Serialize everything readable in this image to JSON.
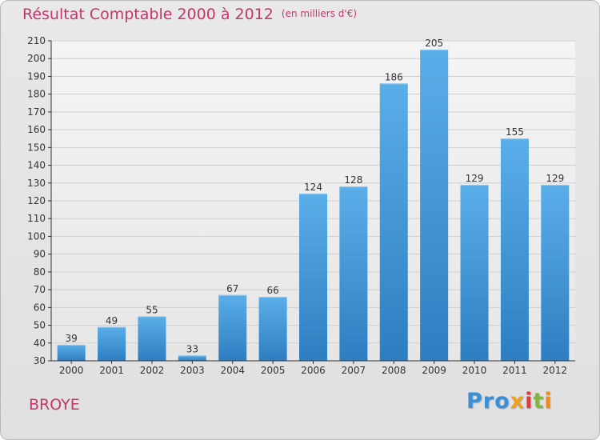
{
  "title": {
    "main": "Résultat Comptable 2000 à 2012",
    "unit": "(en milliers d'€)"
  },
  "commune": "BROYE",
  "logo": {
    "p1": "Pro",
    "p2": "x",
    "p3": "i",
    "p4": "t",
    "p5": "i"
  },
  "colors": {
    "title": "#c4366b",
    "bar_top": "#5aaee8",
    "bar_bottom": "#2d7ec1",
    "grid": "#cfcfcf",
    "axis": "#333333"
  },
  "chart_data": {
    "type": "bar",
    "title": "Résultat Comptable 2000 à 2012",
    "xlabel": "",
    "ylabel": "(en milliers d'€)",
    "categories": [
      "2000",
      "2001",
      "2002",
      "2003",
      "2004",
      "2005",
      "2006",
      "2007",
      "2008",
      "2009",
      "2010",
      "2011",
      "2012"
    ],
    "values": [
      39,
      49,
      55,
      33,
      67,
      66,
      124,
      128,
      186,
      205,
      129,
      155,
      129
    ],
    "ylim": [
      30,
      210
    ],
    "yticks": [
      30,
      40,
      50,
      60,
      70,
      80,
      90,
      100,
      110,
      120,
      130,
      140,
      150,
      160,
      170,
      180,
      190,
      200,
      210
    ],
    "grid": true
  }
}
